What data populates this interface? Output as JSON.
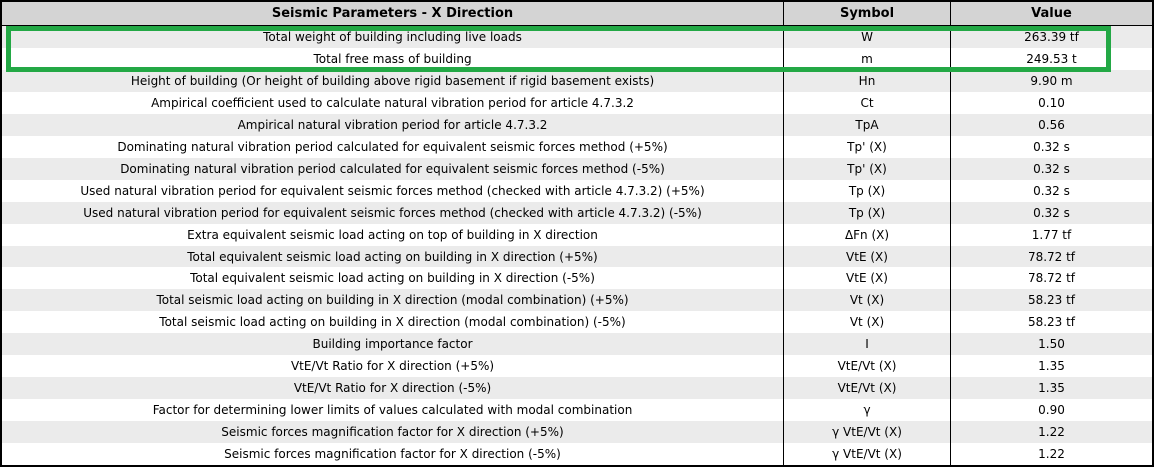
{
  "report": {
    "title": "Seismic Parameters - X Direction",
    "header": {
      "parameter": "Seismic Parameters - X Direction",
      "symbol": "Symbol",
      "value": "Value"
    },
    "rows": [
      {
        "parameter": "Total weight of building including live loads",
        "symbol": "W",
        "value": "263.39 tf"
      },
      {
        "parameter": "Total free mass of building",
        "symbol": "m",
        "value": "249.53 t"
      },
      {
        "parameter": "Height of building (Or height of building above rigid basement if rigid basement exists)",
        "symbol": "Hn",
        "value": "9.90 m"
      },
      {
        "parameter": "Ampirical coefficient used to calculate natural vibration period for article 4.7.3.2",
        "symbol": "Ct",
        "value": "0.10"
      },
      {
        "parameter": "Ampirical natural vibration period for article 4.7.3.2",
        "symbol": "TpA",
        "value": "0.56"
      },
      {
        "parameter": "Dominating natural vibration period calculated for equivalent seismic forces method (+5%)",
        "symbol": "Tp' (X)",
        "value": "0.32 s"
      },
      {
        "parameter": "Dominating natural vibration period calculated for equivalent seismic forces method (-5%)",
        "symbol": "Tp' (X)",
        "value": "0.32 s"
      },
      {
        "parameter": "Used natural vibration period for equivalent seismic forces method (checked with article 4.7.3.2) (+5%)",
        "symbol": "Tp (X)",
        "value": "0.32 s"
      },
      {
        "parameter": "Used natural vibration period for equivalent seismic forces method (checked with article 4.7.3.2) (-5%)",
        "symbol": "Tp (X)",
        "value": "0.32 s"
      },
      {
        "parameter": "Extra equivalent seismic load acting on top of building in X direction",
        "symbol": "ΔFn (X)",
        "value": "1.77 tf"
      },
      {
        "parameter": "Total equivalent seismic load acting on building in X direction (+5%)",
        "symbol": "VtE (X)",
        "value": "78.72 tf"
      },
      {
        "parameter": "Total equivalent seismic load acting on building in X direction (-5%)",
        "symbol": "VtE (X)",
        "value": "78.72 tf"
      },
      {
        "parameter": "Total seismic load acting on building in X direction (modal combination) (+5%)",
        "symbol": "Vt (X)",
        "value": "58.23 tf"
      },
      {
        "parameter": "Total seismic load acting on building in X direction (modal combination) (-5%)",
        "symbol": "Vt (X)",
        "value": "58.23 tf"
      },
      {
        "parameter": "Building importance factor",
        "symbol": "I",
        "value": "1.50"
      },
      {
        "parameter": "VtE/Vt Ratio for X direction (+5%)",
        "symbol": "VtE/Vt (X)",
        "value": "1.35"
      },
      {
        "parameter": "VtE/Vt Ratio for X direction (-5%)",
        "symbol": "VtE/Vt (X)",
        "value": "1.35"
      },
      {
        "parameter": "Factor for determining lower limits of values calculated with modal combination",
        "symbol": "γ",
        "value": "0.90"
      },
      {
        "parameter": "Seismic forces magnification factor for X direction (+5%)",
        "symbol": "γ VtE/Vt (X)",
        "value": "1.22"
      },
      {
        "parameter": "Seismic forces magnification factor for X direction (-5%)",
        "symbol": "γ VtE/Vt (X)",
        "value": "1.22"
      }
    ],
    "highlight": {
      "first_row_index": 0,
      "last_row_index": 1,
      "color": "#23a845"
    },
    "colors": {
      "header_background": "#d4d4d4",
      "stripe_background": "#ebebeb",
      "border": "#000000"
    }
  }
}
